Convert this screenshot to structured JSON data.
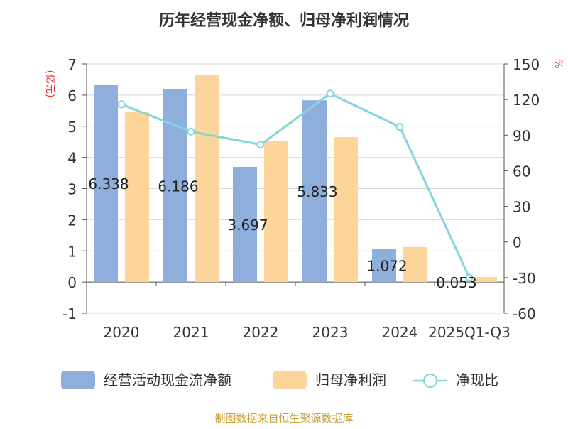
{
  "chart_data": {
    "type": "bar",
    "title": "历年经营现金净额、归母净利润情况",
    "categories": [
      "2020",
      "2021",
      "2022",
      "2023",
      "2024",
      "2025Q1-Q3"
    ],
    "series": [
      {
        "name": "经营活动现金流净额",
        "type": "bar",
        "axis": "left",
        "color": "#8eaedb",
        "values": [
          6.338,
          6.186,
          3.697,
          5.833,
          1.072,
          0.053
        ],
        "labels": [
          "6.338",
          "6.186",
          "3.697",
          "5.833",
          "1.072",
          "0.053"
        ]
      },
      {
        "name": "归母净利润",
        "type": "bar",
        "axis": "left",
        "color": "#fdd59a",
        "values": [
          5.45,
          6.65,
          4.52,
          4.65,
          1.12,
          0.16
        ]
      },
      {
        "name": "净现比",
        "type": "line",
        "axis": "right",
        "color": "#86d4dc",
        "values": [
          116,
          93,
          82,
          125,
          97,
          -30
        ]
      }
    ],
    "y_left": {
      "label": "(亿元)",
      "min": -1,
      "max": 7,
      "ticks": [
        -1,
        0,
        1,
        2,
        3,
        4,
        5,
        6,
        7
      ]
    },
    "y_right": {
      "label": "%",
      "min": -60,
      "max": 150,
      "ticks": [
        -60,
        -30,
        0,
        30,
        60,
        90,
        120,
        150
      ]
    },
    "legend_position": "bottom",
    "grid": true
  },
  "source": "制图数据来自恒生聚源数据库",
  "colors": {
    "title": "#333333",
    "axis_label": "#e8373a",
    "source": "#c9a13b",
    "grid": "#d9d9d9",
    "axis": "#555555"
  }
}
